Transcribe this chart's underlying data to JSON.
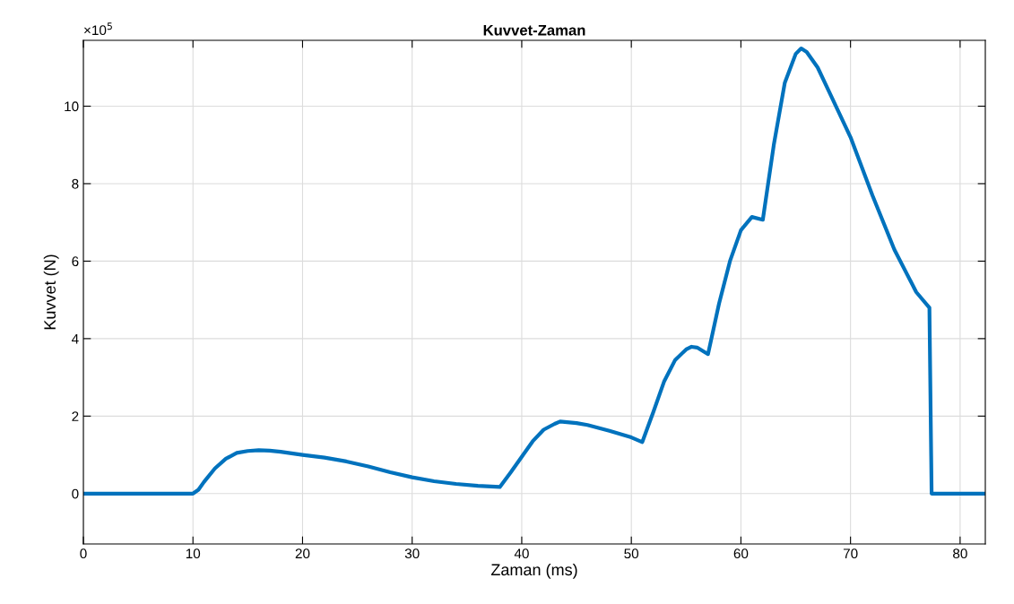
{
  "chart_data": {
    "type": "line",
    "title": "Kuvvet-Zaman",
    "xlabel": "Zaman (ms)",
    "ylabel": "Kuvvet (N)",
    "annotations": [
      "×10$^{5}$"
    ],
    "series": [
      {
        "color": "#0072bd",
        "x": [
          0,
          10,
          10.5,
          11,
          12,
          13,
          14,
          15,
          16,
          17,
          18,
          20,
          22,
          24,
          26,
          28,
          30,
          32,
          34,
          36,
          38,
          39,
          40,
          41,
          42,
          43,
          43.5,
          45,
          46,
          48,
          50,
          51,
          52,
          53,
          54,
          55,
          55.5,
          56,
          57,
          58,
          59,
          60,
          61,
          62,
          63,
          64,
          65,
          65.5,
          66,
          67,
          68,
          70,
          72,
          74,
          76,
          77.2,
          77.4,
          82.3
        ],
        "values": [
          0,
          0,
          0.1,
          0.3,
          0.65,
          0.9,
          1.05,
          1.1,
          1.12,
          1.11,
          1.08,
          1.0,
          0.93,
          0.83,
          0.7,
          0.55,
          0.42,
          0.32,
          0.25,
          0.2,
          0.17,
          0.55,
          0.95,
          1.35,
          1.65,
          1.8,
          1.86,
          1.82,
          1.77,
          1.62,
          1.45,
          1.33,
          2.1,
          2.9,
          3.45,
          3.72,
          3.79,
          3.77,
          3.6,
          4.9,
          6.0,
          6.8,
          7.14,
          7.07,
          9.0,
          10.6,
          11.35,
          11.49,
          11.4,
          11.0,
          10.4,
          9.2,
          7.7,
          6.3,
          5.2,
          4.8,
          0,
          0
        ]
      }
    ],
    "xlim": [
      0,
      82.3
    ],
    "xticks": [
      0,
      10,
      20,
      30,
      40,
      50,
      60,
      70,
      80
    ],
    "ylim": [
      -1.3,
      11.7
    ],
    "yticks": [
      0,
      2,
      4,
      6,
      8,
      10
    ],
    "grid": true,
    "line_style": "solid",
    "marker": "none"
  }
}
